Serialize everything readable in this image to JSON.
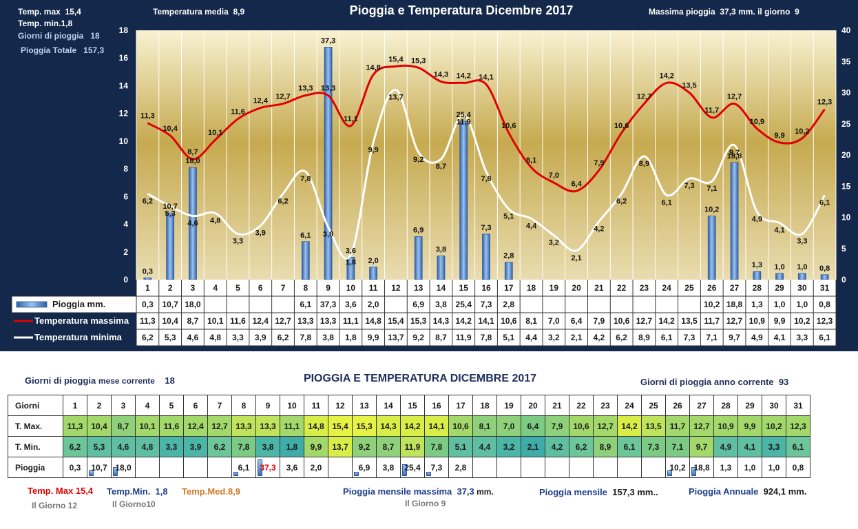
{
  "header": {
    "temp_max_label": "Temp. max",
    "temp_max": "15,4",
    "temp_min_label": "Temp. min.",
    "temp_min": "1,8",
    "rain_days_label": "Giorni di pioggia",
    "rain_days": "18",
    "rain_total_label": "Pioggia Totale",
    "rain_total": "157,3",
    "temp_media_label": "Temperatura media",
    "temp_media": "8,9",
    "title": "Pioggia e Temperatura Dicembre 2017",
    "max_rain_label": "Massima pioggia",
    "max_rain": "37,3 mm.",
    "max_rain_day_label": "il giorno",
    "max_rain_day": "9"
  },
  "chart_data": {
    "type": "bar",
    "categories": [
      "1",
      "2",
      "3",
      "4",
      "5",
      "6",
      "7",
      "8",
      "9",
      "10",
      "11",
      "12",
      "13",
      "14",
      "15",
      "16",
      "17",
      "18",
      "19",
      "20",
      "21",
      "22",
      "23",
      "24",
      "25",
      "26",
      "27",
      "28",
      "29",
      "30",
      "31"
    ],
    "series": [
      {
        "name": "Pioggia mm.",
        "type": "bar",
        "axis": "right",
        "color": "#4a7fc9",
        "values": [
          "0,3",
          "10,7",
          "18,0",
          "",
          "",
          "",
          "",
          "6,1",
          "37,3",
          "3,6",
          "2,0",
          "",
          "6,9",
          "3,8",
          "25,4",
          "7,3",
          "2,8",
          "",
          "",
          "",
          "",
          "",
          "",
          "",
          "",
          "10,2",
          "18,8",
          "1,3",
          "1,0",
          "1,0",
          "0,8"
        ],
        "numeric": [
          0.3,
          10.7,
          18.0,
          null,
          null,
          null,
          null,
          6.1,
          37.3,
          3.6,
          2.0,
          null,
          6.9,
          3.8,
          25.4,
          7.3,
          2.8,
          null,
          null,
          null,
          null,
          null,
          null,
          null,
          null,
          10.2,
          18.8,
          1.3,
          1.0,
          1.0,
          0.8
        ]
      },
      {
        "name": "Temperatura massima",
        "type": "line",
        "axis": "left",
        "color": "#e00000",
        "values": [
          "11,3",
          "10,4",
          "8,7",
          "10,1",
          "11,6",
          "12,4",
          "12,7",
          "13,3",
          "13,3",
          "11,1",
          "14,8",
          "15,4",
          "15,3",
          "14,3",
          "14,2",
          "14,1",
          "10,6",
          "8,1",
          "7,0",
          "6,4",
          "7,9",
          "10,6",
          "12,7",
          "14,2",
          "13,5",
          "11,7",
          "12,7",
          "10,9",
          "9,9",
          "10,2",
          "12,3"
        ],
        "numeric": [
          11.3,
          10.4,
          8.7,
          10.1,
          11.6,
          12.4,
          12.7,
          13.3,
          13.3,
          11.1,
          14.8,
          15.4,
          15.3,
          14.3,
          14.2,
          14.1,
          10.6,
          8.1,
          7.0,
          6.4,
          7.9,
          10.6,
          12.7,
          14.2,
          13.5,
          11.7,
          12.7,
          10.9,
          9.9,
          10.2,
          12.3
        ]
      },
      {
        "name": "Temperatura minima",
        "type": "line",
        "axis": "left",
        "color": "#ffffff",
        "values": [
          "6,2",
          "5,3",
          "4,6",
          "4,8",
          "3,3",
          "3,9",
          "6,2",
          "7,8",
          "3,8",
          "1,8",
          "9,9",
          "13,7",
          "9,2",
          "8,7",
          "11,9",
          "7,8",
          "5,1",
          "4,4",
          "3,2",
          "2,1",
          "4,2",
          "6,2",
          "8,9",
          "6,1",
          "7,3",
          "7,1",
          "9,7",
          "4,9",
          "4,1",
          "3,3",
          "6,1"
        ],
        "numeric": [
          6.2,
          5.3,
          4.6,
          4.8,
          3.3,
          3.9,
          6.2,
          7.8,
          3.8,
          1.8,
          9.9,
          13.7,
          9.2,
          8.7,
          11.9,
          7.8,
          5.1,
          4.4,
          3.2,
          2.1,
          4.2,
          6.2,
          8.9,
          6.1,
          7.3,
          7.1,
          9.7,
          4.9,
          4.1,
          3.3,
          6.1
        ]
      }
    ],
    "left_axis": {
      "ylim": [
        0,
        18
      ],
      "ticks": [
        "0",
        "2",
        "4",
        "6",
        "8",
        "10",
        "12",
        "14",
        "16",
        "18"
      ]
    },
    "right_axis": {
      "ylim": [
        0,
        40
      ],
      "ticks": [
        "0",
        "5",
        "10",
        "15",
        "20",
        "25",
        "30",
        "35",
        "40"
      ]
    },
    "grid": true,
    "legend": "table-below"
  },
  "lower": {
    "rain_days_month_label": "Giorni di pioggia",
    "rain_days_month_label2": "mese corrente",
    "rain_days_month": "18",
    "title": "PIOGGIA E TEMPERATURA DICEMBRE 2017",
    "rain_days_year_label": "Giorni di pioggia anno corrente",
    "rain_days_year": "93",
    "row_days": "Giorni",
    "row_tmax": "T. Max.",
    "row_tmin": "T. Min.",
    "row_rain": "Pioggia",
    "cell_colors": {
      "tmax": [
        "#a3d86a",
        "#a3d86a",
        "#8fd07a",
        "#a3d86a",
        "#a3d86a",
        "#a3d86a",
        "#a3d86a",
        "#bfe35b",
        "#bfe35b",
        "#a3d86a",
        "#d8ee47",
        "#e6f244",
        "#e6f244",
        "#d8ee47",
        "#d8ee47",
        "#d8ee47",
        "#a3d86a",
        "#8fd07a",
        "#8fd07a",
        "#7ccb85",
        "#8fd07a",
        "#a3d86a",
        "#a3d86a",
        "#d8ee47",
        "#bfe35b",
        "#a3d86a",
        "#a3d86a",
        "#a3d86a",
        "#a3d86a",
        "#a3d86a",
        "#a3d86a"
      ],
      "tmin": [
        "#6dc69a",
        "#5fbfa0",
        "#5fbfa0",
        "#5fbfa0",
        "#4cb6a6",
        "#4cb6a6",
        "#6dc69a",
        "#7ccb85",
        "#4cb6a6",
        "#3faca8",
        "#a3d86a",
        "#d8ee47",
        "#8fd07a",
        "#8fd07a",
        "#bfe35b",
        "#7ccb85",
        "#5fbfa0",
        "#5fbfa0",
        "#4cb6a6",
        "#3faca8",
        "#5fbfa0",
        "#6dc69a",
        "#8fd07a",
        "#6dc69a",
        "#7ccb85",
        "#7ccb85",
        "#a3d86a",
        "#5fbfa0",
        "#5fbfa0",
        "#4cb6a6",
        "#6dc69a"
      ]
    },
    "max_rain_highlight_index": 8
  },
  "footer": {
    "temp_max_label": "Temp. Max",
    "temp_max": "15,4",
    "temp_max_day": "Il Giorno  12",
    "temp_min_label": "Temp.Min.",
    "temp_min": "1,8",
    "temp_min_day": "Il Giorno10",
    "temp_med_label": "Temp.Med.",
    "temp_med": "8,9",
    "max_month_rain_label": "Pioggia mensile massima",
    "max_month_rain": "37,3",
    "max_month_rain_unit": "mm.",
    "max_month_rain_day": "Il Giorno  9",
    "month_rain_label": "Pioggia mensile",
    "month_rain": "157,3 mm..",
    "annual_rain_label": "Pioggia Annuale",
    "annual_rain": "924,1 mm."
  },
  "colors": {
    "background": "#13284a",
    "plot_top": "#f5efc9",
    "plot_mid": "#c7ac52",
    "bar_fill": "#4a7fc9",
    "tmax_line": "#e00000",
    "tmin_line": "#ffffff",
    "title_dark": "#1f2d5a",
    "footer_red": "#e00000",
    "footer_blue": "#1f3f8a",
    "footer_orange": "#d07a2a"
  }
}
